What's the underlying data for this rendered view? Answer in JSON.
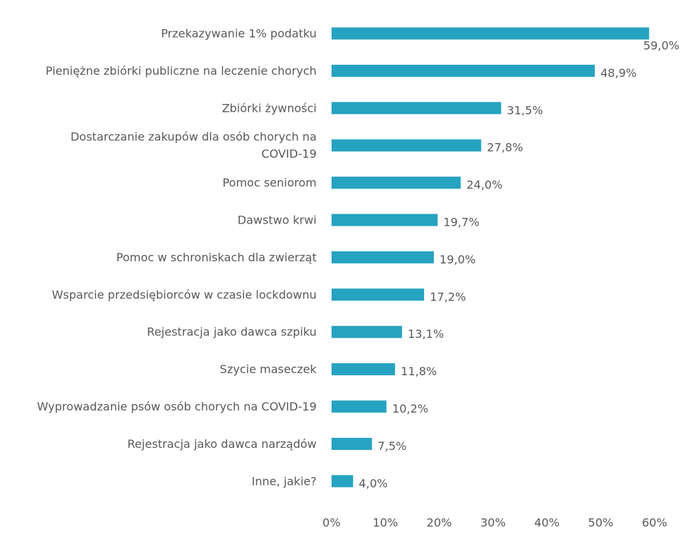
{
  "chart_data": {
    "type": "bar",
    "orientation": "horizontal",
    "title": "",
    "xlabel": "",
    "ylabel": "",
    "bar_color": "#26A3C0",
    "label_color": "#595959",
    "xlim": [
      0,
      60
    ],
    "grid": false,
    "legend": "none",
    "x_ticks": [
      "0%",
      "10%",
      "20%",
      "30%",
      "40%",
      "50%",
      "60%"
    ],
    "categories": [
      [
        "Przekazywanie 1% podatku"
      ],
      [
        "Pieniężne zbiórki publiczne na leczenie chorych"
      ],
      [
        "Zbiórki żywności"
      ],
      [
        "Dostarczanie zakupów dla osób chorych na",
        "COVID-19"
      ],
      [
        "Pomoc seniorom"
      ],
      [
        "Dawstwo krwi"
      ],
      [
        "Pomoc w schroniskach dla zwierząt"
      ],
      [
        "Wsparcie przedsiębiorców w czasie lockdownu"
      ],
      [
        "Rejestracja jako dawca szpiku"
      ],
      [
        "Szycie maseczek"
      ],
      [
        "Wyprowadzanie psów osób chorych na COVID-19"
      ],
      [
        "Rejestracja jako dawca narządów"
      ],
      [
        "Inne, jakie?"
      ]
    ],
    "values": [
      59.0,
      48.9,
      31.5,
      27.8,
      24.0,
      19.7,
      19.0,
      17.2,
      13.1,
      11.8,
      10.2,
      7.5,
      4.0
    ],
    "value_labels": [
      "59,0%",
      "48,9%",
      "31,5%",
      "27,8%",
      "24,0%",
      "19,7%",
      "19,0%",
      "17,2%",
      "13,1%",
      "11,8%",
      "10,2%",
      "7,5%",
      "4,0%"
    ]
  }
}
